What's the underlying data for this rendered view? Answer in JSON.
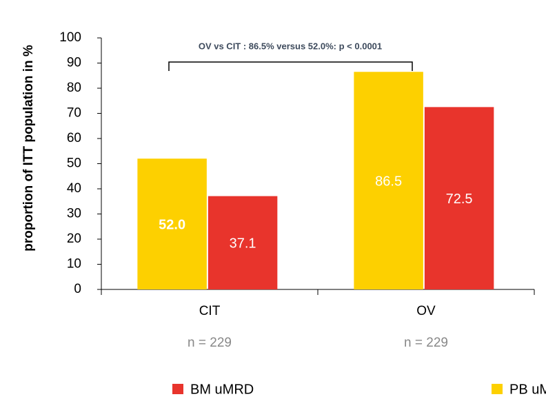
{
  "chart_data": {
    "type": "bar",
    "y_label": "proportion of ITT population in %",
    "annotation": "OV vs CIT : 86.5% versus 52.0%: p < 0.0001",
    "categories": [
      "CIT",
      "OV"
    ],
    "category_notes": [
      "n = 229",
      "n = 229"
    ],
    "series": [
      {
        "name": "PB uMRD",
        "color": "#fdd000",
        "values": [
          52.0,
          86.5
        ],
        "value_labels": [
          "52.0",
          "86.5"
        ]
      },
      {
        "name": "BM uMRD",
        "color": "#e8342c",
        "values": [
          37.1,
          72.5
        ],
        "value_labels": [
          "37.1",
          "72.5"
        ]
      }
    ],
    "ylim": [
      0,
      100
    ],
    "yticks": [
      0,
      10,
      20,
      30,
      40,
      50,
      60,
      70,
      80,
      90,
      100
    ]
  }
}
